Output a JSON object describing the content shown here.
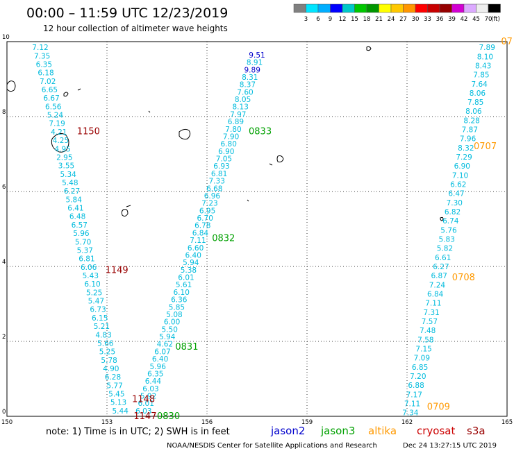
{
  "header": {
    "title": "00:00 – 11:59 UTC 12/23/2019",
    "subtitle": "12 hour collection of altimeter wave heights"
  },
  "legend": {
    "labels": [
      "3",
      "6",
      "9",
      "12",
      "15",
      "18",
      "21",
      "24",
      "27",
      "30",
      "33",
      "36",
      "39",
      "42",
      "45",
      "70"
    ],
    "unit": "(ft)",
    "colors": [
      "#808080",
      "#00e5ff",
      "#00aeff",
      "#0000ff",
      "#00c8c8",
      "#00c800",
      "#009600",
      "#ffff00",
      "#ffc800",
      "#ff9600",
      "#ff0000",
      "#c80000",
      "#960000",
      "#d200d2",
      "#dcaaff",
      "#eeeeee",
      "#000000"
    ]
  },
  "axes": {
    "x_ticks": [
      "150",
      "153",
      "156",
      "159",
      "162",
      "165"
    ],
    "y_ticks": [
      "0",
      "2",
      "4",
      "6",
      "8",
      "10"
    ]
  },
  "tracks": [
    {
      "id": "west",
      "color": "#00bbdd",
      "lon_start": 151.0,
      "lat_start": 9.85,
      "lon_end": 153.4,
      "lat_end": 0.15,
      "values": [
        "7.12",
        "7.35",
        "6.35",
        "6.18",
        "7.02",
        "6.65",
        "6.67",
        "6.56",
        "5.24",
        "7.19",
        "4.21",
        "4.25",
        "4.95",
        "2.95",
        "3.55",
        "5.34",
        "5.48",
        "6.27",
        "5.84",
        "6.41",
        "6.48",
        "6.57",
        "5.96",
        "5.70",
        "5.37",
        "6.81",
        "6.06",
        "5.43",
        "6.10",
        "5.25",
        "5.47",
        "6.73",
        "6.15",
        "5.21",
        "4.83",
        "5.66",
        "5.25",
        "5.78",
        "4.90",
        "6.28",
        "5.77",
        "5.45",
        "5.13",
        "5.44"
      ]
    },
    {
      "id": "central",
      "color": "#00bbdd",
      "lon_start": 157.5,
      "lat_start": 9.65,
      "lon_end": 154.1,
      "lat_end": 0.15,
      "values": [
        "9.51",
        "8.91",
        "9.89",
        "8.31",
        "8.37",
        "7.60",
        "8.05",
        "8.13",
        "7.97",
        "6.89",
        "7.80",
        "7.90",
        "6.80",
        "6.90",
        "7.05",
        "6.93",
        "6.81",
        "7.33",
        "6.68",
        "6.96",
        "7.23",
        "6.95",
        "6.70",
        "6.78",
        "6.84",
        "7.11",
        "6.60",
        "6.40",
        "5.94",
        "5.38",
        "6.01",
        "5.61",
        "6.10",
        "6.36",
        "5.85",
        "5.08",
        "6.00",
        "5.50",
        "5.94",
        "4.62",
        "6.07",
        "6.40",
        "5.96",
        "6.35",
        "6.44",
        "6.03",
        "5.92",
        "6.01",
        "6.03"
      ],
      "dark_values": [
        "9.51",
        "9.89"
      ]
    },
    {
      "id": "east",
      "color": "#00bbdd",
      "lon_start": 164.4,
      "lat_start": 9.85,
      "lon_end": 162.1,
      "lat_end": 0.1,
      "values": [
        "7.89",
        "8.10",
        "8.43",
        "7.85",
        "7.64",
        "8.06",
        "7.85",
        "8.06",
        "8.28",
        "7.87",
        "7.96",
        "8.32",
        "7.29",
        "6.90",
        "7.10",
        "6.62",
        "6.47",
        "7.30",
        "6.82",
        "6.74",
        "5.76",
        "5.83",
        "5.82",
        "6.61",
        "6.27",
        "6.87",
        "7.24",
        "6.84",
        "7.11",
        "7.31",
        "7.57",
        "7.48",
        "7.58",
        "7.15",
        "7.09",
        "6.85",
        "7.20",
        "6.88",
        "7.17",
        "7.11",
        "7.34"
      ]
    }
  ],
  "time_labels": [
    {
      "text": "1150",
      "sat": "cryosat",
      "lon": 152.1,
      "lat": 7.6
    },
    {
      "text": "1149",
      "sat": "cryosat",
      "lon": 152.95,
      "lat": 3.9
    },
    {
      "text": "1148",
      "sat": "cryosat",
      "lon": 153.75,
      "lat": 0.45
    },
    {
      "text": "1147",
      "sat": "cryosat",
      "lon": 153.8,
      "lat": 0.0
    },
    {
      "text": "0833",
      "sat": "jason3",
      "lon": 157.25,
      "lat": 7.6
    },
    {
      "text": "0832",
      "sat": "jason3",
      "lon": 156.15,
      "lat": 4.75
    },
    {
      "text": "0831",
      "sat": "jason3",
      "lon": 155.05,
      "lat": 1.85
    },
    {
      "text": "0830",
      "sat": "jason3",
      "lon": 154.5,
      "lat": 0.0
    },
    {
      "text": "07",
      "sat": "altika",
      "lon": 164.82,
      "lat": 10.0
    },
    {
      "text": "0707",
      "sat": "altika",
      "lon": 164.0,
      "lat": 7.2
    },
    {
      "text": "0708",
      "sat": "altika",
      "lon": 163.35,
      "lat": 3.7
    },
    {
      "text": "0709",
      "sat": "altika",
      "lon": 162.6,
      "lat": 0.25
    }
  ],
  "footer": {
    "note": "note: 1) Time is in UTC; 2) SWH is in feet",
    "satellites": [
      {
        "name": "jason2",
        "color": "#0000cc"
      },
      {
        "name": "jason3",
        "color": "#00a000"
      },
      {
        "name": "altika",
        "color": "#ff9900"
      },
      {
        "name": "cryosat",
        "color": "#cc0000"
      },
      {
        "name": "s3a",
        "color": "#990000"
      }
    ],
    "credit": "NOAA/NESDIS Center for Satellite Applications and Research",
    "timestamp": "Dec 24 13:27:15 UTC 2019"
  }
}
